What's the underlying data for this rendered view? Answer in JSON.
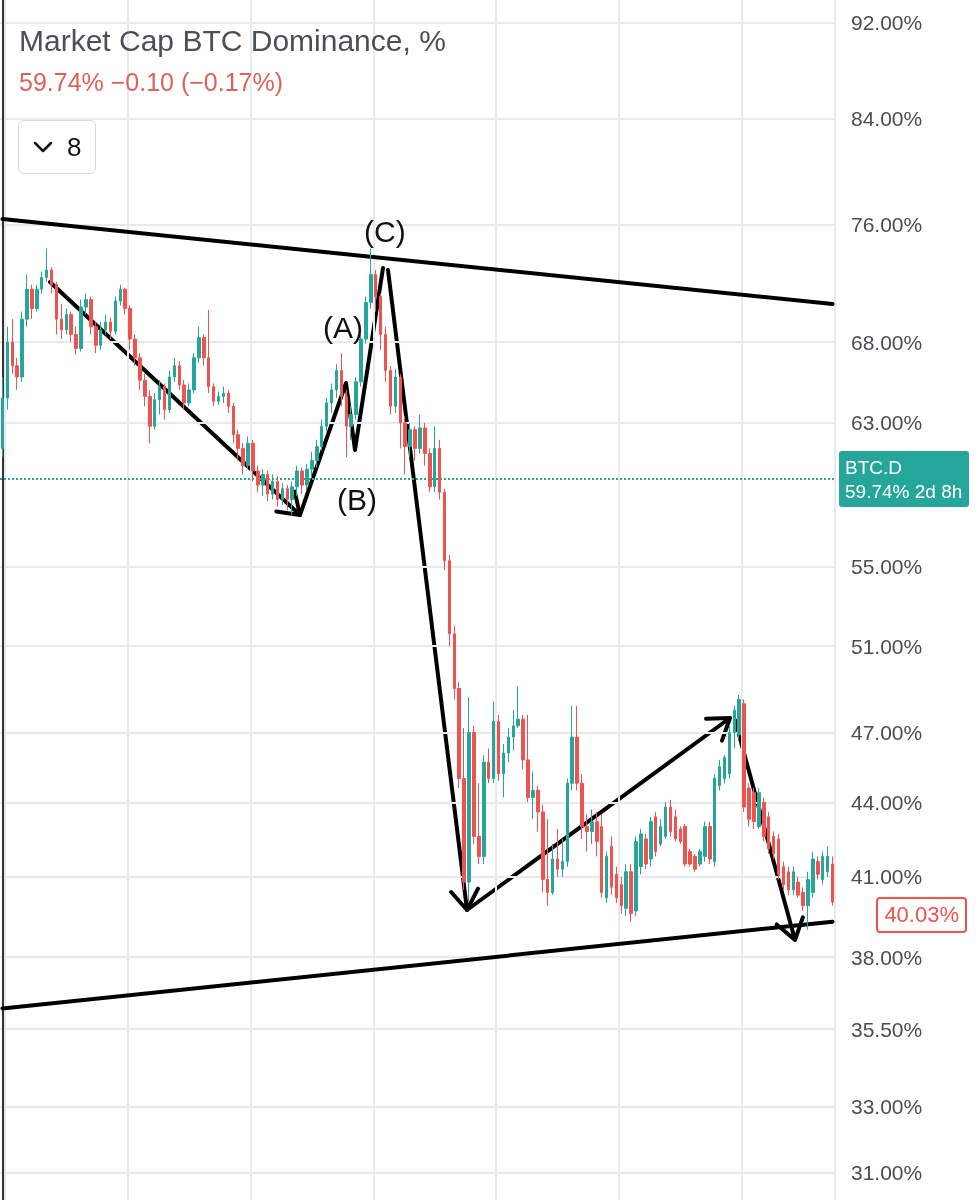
{
  "chart_data": {
    "type": "candlestick",
    "title": "Market Cap BTC Dominance, %",
    "subtitle": "59.74% −0.10 (−0.17%)",
    "categories": [
      null,
      null,
      null,
      null,
      null,
      null,
      null,
      null,
      null,
      null,
      null,
      null,
      null,
      null,
      null,
      null,
      null,
      null,
      null,
      null,
      null,
      null,
      null,
      null,
      null,
      null,
      null,
      null,
      null,
      null,
      null,
      null,
      null,
      null,
      null,
      null,
      null,
      null,
      null,
      null,
      null,
      null,
      null,
      null,
      null,
      null,
      null,
      null,
      null,
      null,
      null,
      null,
      null,
      null,
      null,
      null,
      null,
      null,
      null,
      null,
      null,
      null,
      null,
      null,
      null,
      null,
      null,
      null,
      null,
      null,
      null,
      null,
      null,
      null,
      null,
      null,
      null,
      null,
      null,
      null,
      null,
      null,
      null,
      null,
      null,
      null,
      null,
      null,
      null,
      null,
      null,
      null,
      null,
      null,
      null,
      null,
      null,
      null,
      null,
      null,
      null,
      null,
      null,
      null,
      null,
      null,
      null,
      null,
      null,
      null,
      null,
      null,
      null,
      null,
      null,
      null,
      null,
      null,
      null,
      null,
      null,
      null,
      null,
      null,
      null,
      null,
      null,
      null,
      null,
      null,
      null,
      null,
      null,
      null,
      null,
      null,
      null,
      null,
      null,
      null,
      null,
      null,
      null,
      null,
      null,
      null,
      null,
      null,
      null,
      null,
      null,
      null,
      null,
      null,
      null,
      null,
      null,
      null,
      null,
      null,
      null,
      null,
      null,
      null,
      null,
      null,
      null,
      null,
      null,
      null
    ],
    "ohlc": [
      [
        61.5,
        65.8,
        61.0,
        64.5
      ],
      [
        64.5,
        69.0,
        63.8,
        68.0
      ],
      [
        68.0,
        69.5,
        66.0,
        66.5
      ],
      [
        66.5,
        67.0,
        65.0,
        65.8
      ],
      [
        65.8,
        70.0,
        65.5,
        69.5
      ],
      [
        69.5,
        72.5,
        69.0,
        71.5
      ],
      [
        71.5,
        71.8,
        69.5,
        70.2
      ],
      [
        70.2,
        71.8,
        70.0,
        71.5
      ],
      [
        71.5,
        72.7,
        71.2,
        72.3
      ],
      [
        72.3,
        74.3,
        72.0,
        72.8
      ],
      [
        72.8,
        73.0,
        71.2,
        71.8
      ],
      [
        71.8,
        72.0,
        68.5,
        69.5
      ],
      [
        69.5,
        70.5,
        68.2,
        68.8
      ],
      [
        68.8,
        70.2,
        68.5,
        69.8
      ],
      [
        69.8,
        70.0,
        68.0,
        68.5
      ],
      [
        68.5,
        69.0,
        67.2,
        67.6
      ],
      [
        67.6,
        70.8,
        67.4,
        70.3
      ],
      [
        70.3,
        71.2,
        69.8,
        70.8
      ],
      [
        70.8,
        71.0,
        68.5,
        69.0
      ],
      [
        69.0,
        69.3,
        67.3,
        67.8
      ],
      [
        67.8,
        69.3,
        67.5,
        68.8
      ],
      [
        68.8,
        69.8,
        68.5,
        69.3
      ],
      [
        69.3,
        69.6,
        68.2,
        68.7
      ],
      [
        68.7,
        71.0,
        68.5,
        70.7
      ],
      [
        70.7,
        71.8,
        70.4,
        71.5
      ],
      [
        71.5,
        71.6,
        69.8,
        70.2
      ],
      [
        70.2,
        70.4,
        67.5,
        68.2
      ],
      [
        68.2,
        68.5,
        66.5,
        67.0
      ],
      [
        67.0,
        67.3,
        65.0,
        65.6
      ],
      [
        65.6,
        66.0,
        64.0,
        64.6
      ],
      [
        64.6,
        65.0,
        61.8,
        62.8
      ],
      [
        62.8,
        64.8,
        62.6,
        64.4
      ],
      [
        64.4,
        65.6,
        63.5,
        65.2
      ],
      [
        65.2,
        65.4,
        63.2,
        63.8
      ],
      [
        63.8,
        66.2,
        63.6,
        65.8
      ],
      [
        65.8,
        67.0,
        65.5,
        66.5
      ],
      [
        66.5,
        66.8,
        65.0,
        65.3
      ],
      [
        65.3,
        65.6,
        63.8,
        64.2
      ],
      [
        64.2,
        65.4,
        64.0,
        65.0
      ],
      [
        65.0,
        67.3,
        64.8,
        67.0
      ],
      [
        67.0,
        69.0,
        66.7,
        68.3
      ],
      [
        68.3,
        68.5,
        66.5,
        67.0
      ],
      [
        67.0,
        70.1,
        64.8,
        65.2
      ],
      [
        65.2,
        65.4,
        64.0,
        64.3
      ],
      [
        64.3,
        64.9,
        64.1,
        64.6
      ],
      [
        64.6,
        65.2,
        64.2,
        64.8
      ],
      [
        64.8,
        65.0,
        63.6,
        64.0
      ],
      [
        64.0,
        64.2,
        61.8,
        62.3
      ],
      [
        62.3,
        62.6,
        60.8,
        61.5
      ],
      [
        61.5,
        61.8,
        60.0,
        60.5
      ],
      [
        60.5,
        62.2,
        60.3,
        61.8
      ],
      [
        61.8,
        62.0,
        59.6,
        60.2
      ],
      [
        60.2,
        60.5,
        59.0,
        59.4
      ],
      [
        59.4,
        60.3,
        58.8,
        60.0
      ],
      [
        60.0,
        60.2,
        58.5,
        58.9
      ],
      [
        58.9,
        60.0,
        58.6,
        59.6
      ],
      [
        59.6,
        59.9,
        58.2,
        58.6
      ],
      [
        58.6,
        59.5,
        58.3,
        59.2
      ],
      [
        59.2,
        59.4,
        58.0,
        58.6
      ],
      [
        58.6,
        59.6,
        57.7,
        59.3
      ],
      [
        59.3,
        60.5,
        58.8,
        60.2
      ],
      [
        60.2,
        60.4,
        58.9,
        59.4
      ],
      [
        59.4,
        60.6,
        59.1,
        60.3
      ],
      [
        60.3,
        61.3,
        59.8,
        60.8
      ],
      [
        60.8,
        62.0,
        60.4,
        61.6
      ],
      [
        61.6,
        63.2,
        61.4,
        62.8
      ],
      [
        62.8,
        64.5,
        62.5,
        64.2
      ],
      [
        64.2,
        65.4,
        63.6,
        65.0
      ],
      [
        65.0,
        66.6,
        64.5,
        66.2
      ],
      [
        66.2,
        67.3,
        64.0,
        64.6
      ],
      [
        64.6,
        65.0,
        61.0,
        62.8
      ],
      [
        62.8,
        64.0,
        62.0,
        63.5
      ],
      [
        63.5,
        65.8,
        63.2,
        65.5
      ],
      [
        65.5,
        68.5,
        65.2,
        68.2
      ],
      [
        68.2,
        71.0,
        67.9,
        70.6
      ],
      [
        70.6,
        74.3,
        70.2,
        72.5
      ],
      [
        72.5,
        72.8,
        70.0,
        71.0
      ],
      [
        71.0,
        71.2,
        67.5,
        68.5
      ],
      [
        68.5,
        69.0,
        65.5,
        66.2
      ],
      [
        66.2,
        66.5,
        63.5,
        64.0
      ],
      [
        64.0,
        66.3,
        63.6,
        65.8
      ],
      [
        65.8,
        66.0,
        61.5,
        63.0
      ],
      [
        63.0,
        63.4,
        60.0,
        61.6
      ],
      [
        61.6,
        63.0,
        61.0,
        62.6
      ],
      [
        62.6,
        62.8,
        60.8,
        61.5
      ],
      [
        61.5,
        63.5,
        61.2,
        62.7
      ],
      [
        62.7,
        63.0,
        60.5,
        61.2
      ],
      [
        61.2,
        61.5,
        59.0,
        59.3
      ],
      [
        59.3,
        62.8,
        59.0,
        61.5
      ],
      [
        61.5,
        62.0,
        58.6,
        59.0
      ],
      [
        59.0,
        59.2,
        54.8,
        55.3
      ],
      [
        55.3,
        55.6,
        51.0,
        51.6
      ],
      [
        51.6,
        52.0,
        48.5,
        49.0
      ],
      [
        49.0,
        49.3,
        44.6,
        45.0
      ],
      [
        45.0,
        47.2,
        40.5,
        40.8
      ],
      [
        40.8,
        48.6,
        40.0,
        47.0
      ],
      [
        47.0,
        47.3,
        42.3,
        42.6
      ],
      [
        42.6,
        44.8,
        41.5,
        41.8
      ],
      [
        41.8,
        46.0,
        41.5,
        45.7
      ],
      [
        45.7,
        46.3,
        44.8,
        45.0
      ],
      [
        45.0,
        48.4,
        44.8,
        47.5
      ],
      [
        47.5,
        47.8,
        44.9,
        45.2
      ],
      [
        45.2,
        46.5,
        44.2,
        46.1
      ],
      [
        46.1,
        47.2,
        45.7,
        46.8
      ],
      [
        46.8,
        48.0,
        46.2,
        47.3
      ],
      [
        47.3,
        49.1,
        47.2,
        47.6
      ],
      [
        47.6,
        47.8,
        45.4,
        45.8
      ],
      [
        45.8,
        47.8,
        44.0,
        44.2
      ],
      [
        44.2,
        45.3,
        43.3,
        44.5
      ],
      [
        44.5,
        44.7,
        42.8,
        43.6
      ],
      [
        43.6,
        43.9,
        40.4,
        40.9
      ],
      [
        40.9,
        43.3,
        39.9,
        40.4
      ],
      [
        40.4,
        42.3,
        40.3,
        41.7
      ],
      [
        41.7,
        42.9,
        41.0,
        41.3
      ],
      [
        41.3,
        42.5,
        41.0,
        41.6
      ],
      [
        41.6,
        45.0,
        41.4,
        44.8
      ],
      [
        44.8,
        48.2,
        44.5,
        46.8
      ],
      [
        46.8,
        48.2,
        44.5,
        44.8
      ],
      [
        44.8,
        45.2,
        42.5,
        43.0
      ],
      [
        43.0,
        43.5,
        42.0,
        42.8
      ],
      [
        42.8,
        43.7,
        42.3,
        43.2
      ],
      [
        43.2,
        43.6,
        41.8,
        42.4
      ],
      [
        43.0,
        43.5,
        40.2,
        40.4
      ],
      [
        40.2,
        42.0,
        40.0,
        41.8
      ],
      [
        42.2,
        42.6,
        40.3,
        40.6
      ],
      [
        41.1,
        41.4,
        40.0,
        40.2
      ],
      [
        40.7,
        41.0,
        39.6,
        39.9
      ],
      [
        39.8,
        41.5,
        39.5,
        41.2
      ],
      [
        41.2,
        41.5,
        39.3,
        39.6
      ],
      [
        39.7,
        42.6,
        39.5,
        42.4
      ],
      [
        41.4,
        42.9,
        41.1,
        42.7
      ],
      [
        42.5,
        42.7,
        41.3,
        41.5
      ],
      [
        41.7,
        43.4,
        41.4,
        43.2
      ],
      [
        43.4,
        43.6,
        41.8,
        42.0
      ],
      [
        42.3,
        43.3,
        42.2,
        43.0
      ],
      [
        42.6,
        44.0,
        42.5,
        43.8
      ],
      [
        43.8,
        44.1,
        42.6,
        42.8
      ],
      [
        43.4,
        43.7,
        42.4,
        42.5
      ],
      [
        42.9,
        43.0,
        42.3,
        42.4
      ],
      [
        43.0,
        43.1,
        41.4,
        41.5
      ],
      [
        42.0,
        42.1,
        41.4,
        41.5
      ],
      [
        41.8,
        41.9,
        41.2,
        41.3
      ],
      [
        41.5,
        42.1,
        41.4,
        42.0
      ],
      [
        41.8,
        43.2,
        41.6,
        43.0
      ],
      [
        43.0,
        43.2,
        41.5,
        41.7
      ],
      [
        41.6,
        45.2,
        41.4,
        45.0
      ],
      [
        44.7,
        45.8,
        44.5,
        45.5
      ],
      [
        45.0,
        46.0,
        44.8,
        45.9
      ],
      [
        45.2,
        47.3,
        45.0,
        47.0
      ],
      [
        47.0,
        48.2,
        46.3,
        48.0
      ],
      [
        46.9,
        48.7,
        46.7,
        48.5
      ],
      [
        48.3,
        48.5,
        43.6,
        43.8
      ],
      [
        44.6,
        44.8,
        43.0,
        43.3
      ],
      [
        44.4,
        44.6,
        42.9,
        43.2
      ],
      [
        43.0,
        44.6,
        42.9,
        44.4
      ],
      [
        44.0,
        44.2,
        42.4,
        42.6
      ],
      [
        43.4,
        43.6,
        41.9,
        42.1
      ],
      [
        42.6,
        42.8,
        41.7,
        41.9
      ],
      [
        42.5,
        42.7,
        40.9,
        41.1
      ],
      [
        41.4,
        41.6,
        40.5,
        40.7
      ],
      [
        41.2,
        41.4,
        40.3,
        40.5
      ],
      [
        40.5,
        41.4,
        40.3,
        41.2
      ],
      [
        40.8,
        41.0,
        40.2,
        40.3
      ],
      [
        40.4,
        40.6,
        39.7,
        39.9
      ],
      [
        39.9,
        41.2,
        39.0,
        40.9
      ],
      [
        40.4,
        42.0,
        40.2,
        41.7
      ],
      [
        41.6,
        41.8,
        40.9,
        41.1
      ],
      [
        40.9,
        42.0,
        40.7,
        41.8
      ],
      [
        41.2,
        42.2,
        41.0,
        41.8
      ],
      [
        41.5,
        41.8,
        39.9,
        40.03
      ]
    ],
    "colors": [
      "#26a69a",
      "#26a69a",
      "#ef5350",
      "#ef5350",
      "#26a69a",
      "#26a69a",
      "#ef5350",
      "#26a69a",
      "#26a69a",
      "#26a69a",
      "#ef5350",
      "#ef5350",
      "#ef5350",
      "#26a69a",
      "#ef5350",
      "#ef5350",
      "#26a69a",
      "#26a69a",
      "#ef5350",
      "#ef5350",
      "#26a69a",
      "#26a69a",
      "#ef5350",
      "#26a69a",
      "#26a69a",
      "#ef5350",
      "#ef5350",
      "#ef5350",
      "#ef5350",
      "#ef5350",
      "#ef5350",
      "#26a69a",
      "#26a69a",
      "#ef5350",
      "#26a69a",
      "#26a69a",
      "#ef5350",
      "#ef5350",
      "#26a69a",
      "#26a69a",
      "#26a69a",
      "#ef5350",
      "#ef5350",
      "#ef5350",
      "#26a69a",
      "#26a69a",
      "#ef5350",
      "#ef5350",
      "#ef5350",
      "#ef5350",
      "#26a69a",
      "#ef5350",
      "#ef5350",
      "#26a69a",
      "#ef5350",
      "#26a69a",
      "#ef5350",
      "#26a69a",
      "#ef5350",
      "#26a69a",
      "#26a69a",
      "#ef5350",
      "#26a69a",
      "#26a69a",
      "#26a69a",
      "#26a69a",
      "#26a69a",
      "#26a69a",
      "#26a69a",
      "#ef5350",
      "#ef5350",
      "#26a69a",
      "#26a69a",
      "#26a69a",
      "#26a69a",
      "#26a69a",
      "#ef5350",
      "#ef5350",
      "#ef5350",
      "#ef5350",
      "#26a69a",
      "#ef5350",
      "#ef5350",
      "#26a69a",
      "#ef5350",
      "#26a69a",
      "#ef5350",
      "#ef5350",
      "#26a69a",
      "#ef5350",
      "#ef5350",
      "#ef5350",
      "#ef5350",
      "#ef5350",
      "#ef5350",
      "#26a69a",
      "#ef5350",
      "#ef5350",
      "#26a69a",
      "#ef5350",
      "#26a69a",
      "#ef5350",
      "#26a69a",
      "#26a69a",
      "#26a69a",
      "#26a69a",
      "#ef5350",
      "#ef5350",
      "#26a69a",
      "#ef5350",
      "#ef5350",
      "#ef5350",
      "#26a69a",
      "#ef5350",
      "#26a69a",
      "#26a69a",
      "#26a69a",
      "#ef5350",
      "#ef5350",
      "#ef5350",
      "#26a69a",
      "#ef5350",
      "#ef5350",
      "#26a69a",
      "#ef5350",
      "#ef5350",
      "#ef5350",
      "#26a69a",
      "#ef5350",
      "#26a69a",
      "#26a69a",
      "#ef5350",
      "#26a69a",
      "#ef5350",
      "#26a69a",
      "#26a69a",
      "#ef5350",
      "#ef5350",
      "#ef5350",
      "#ef5350",
      "#ef5350",
      "#ef5350",
      "#26a69a",
      "#26a69a",
      "#ef5350",
      "#26a69a",
      "#26a69a",
      "#26a69a",
      "#26a69a",
      "#26a69a",
      "#26a69a",
      "#ef5350",
      "#ef5350",
      "#ef5350",
      "#26a69a",
      "#ef5350",
      "#ef5350",
      "#ef5350",
      "#ef5350",
      "#ef5350",
      "#ef5350",
      "#26a69a",
      "#ef5350",
      "#ef5350",
      "#26a69a",
      "#26a69a",
      "#ef5350",
      "#26a69a",
      "#26a69a",
      "#ef5350"
    ],
    "series": [
      {
        "type": "line",
        "color": "#000000",
        "values": [
          76.4,
          null,
          null,
          null,
          null,
          null,
          null,
          null,
          null,
          null,
          null,
          null,
          null,
          null,
          null,
          null,
          null,
          null,
          null,
          null,
          null,
          null,
          null,
          null,
          null,
          null,
          null,
          null,
          null,
          null,
          null,
          null,
          null,
          null,
          null,
          null,
          null,
          null,
          null,
          null,
          null,
          null,
          null,
          null,
          null,
          null,
          null,
          null,
          null,
          null,
          null,
          null,
          null,
          null,
          null,
          null,
          null,
          null,
          null,
          null,
          null,
          null,
          null,
          null,
          null,
          null,
          null,
          null,
          null,
          null,
          null,
          null,
          null,
          null,
          null,
          null,
          null,
          null,
          null,
          null,
          null,
          null,
          null,
          null,
          null,
          null,
          null,
          null,
          null,
          null,
          null,
          null,
          null,
          null,
          null,
          null,
          null,
          null,
          null,
          null,
          null,
          null,
          null,
          null,
          null,
          null,
          null,
          null,
          null,
          null,
          null,
          null,
          null,
          null,
          null,
          null,
          null,
          null,
          null,
          null,
          null,
          null,
          null,
          null,
          null,
          null,
          null,
          null,
          null,
          null,
          null,
          null,
          null,
          null,
          null,
          null,
          null,
          null,
          null,
          null,
          null,
          null,
          null,
          null,
          null,
          null,
          null,
          null,
          null,
          null,
          null,
          null,
          null,
          null,
          null,
          null,
          null,
          null,
          null,
          null,
          null,
          null,
          null,
          null,
          null,
          null,
          null,
          null,
          null,
          70.5
        ]
      },
      {
        "type": "line",
        "color": "#000000",
        "values": [
          36.2,
          null,
          null,
          null,
          null,
          null,
          null,
          null,
          null,
          null,
          null,
          null,
          null,
          null,
          null,
          null,
          null,
          null,
          null,
          null,
          null,
          null,
          null,
          null,
          null,
          null,
          null,
          null,
          null,
          null,
          null,
          null,
          null,
          null,
          null,
          null,
          null,
          null,
          null,
          null,
          null,
          null,
          null,
          null,
          null,
          null,
          null,
          null,
          null,
          null,
          null,
          null,
          null,
          null,
          null,
          null,
          null,
          null,
          null,
          null,
          null,
          null,
          null,
          null,
          null,
          null,
          null,
          null,
          null,
          null,
          null,
          null,
          null,
          null,
          null,
          null,
          null,
          null,
          null,
          null,
          null,
          null,
          null,
          null,
          null,
          null,
          null,
          null,
          null,
          null,
          null,
          null,
          null,
          null,
          null,
          null,
          null,
          null,
          null,
          null,
          null,
          null,
          null,
          null,
          null,
          null,
          null,
          null,
          null,
          null,
          null,
          null,
          null,
          null,
          null,
          null,
          null,
          null,
          null,
          null,
          null,
          null,
          null,
          null,
          null,
          null,
          null,
          null,
          null,
          null,
          null,
          null,
          null,
          null,
          null,
          null,
          null,
          null,
          null,
          null,
          null,
          null,
          null,
          null,
          null,
          null,
          null,
          null,
          null,
          null,
          null,
          null,
          null,
          null,
          null,
          null,
          null,
          null,
          null,
          null,
          null,
          null,
          null,
          null,
          null,
          null,
          null,
          null,
          null,
          39.3
        ]
      }
    ],
    "ylim": [
      30.2,
      94
    ],
    "yticks": [
      {
        "value": 92,
        "label": "92.00%"
      },
      {
        "value": 84,
        "label": "84.00%"
      },
      {
        "value": 76,
        "label": "76.00%"
      },
      {
        "value": 68,
        "label": "68.00%"
      },
      {
        "value": 63,
        "label": "63.00%"
      },
      {
        "value": 55,
        "label": "55.00%"
      },
      {
        "value": 51,
        "label": "51.00%"
      },
      {
        "value": 47,
        "label": "47.00%"
      },
      {
        "value": 44,
        "label": "44.00%"
      },
      {
        "value": 41,
        "label": "41.00%"
      },
      {
        "value": 38,
        "label": "38.00%"
      },
      {
        "value": 35.5,
        "label": "35.50%"
      },
      {
        "value": 33,
        "label": "33.00%"
      },
      {
        "value": 31,
        "label": "31.00%"
      }
    ],
    "log": true,
    "grid": true,
    "tick_labels": "y",
    "ref_lines": [
      {
        "axis": "y",
        "value": 59.74,
        "label": "BTC.D 59.74% 2d 8h",
        "color": "#26a69a",
        "line_style": "dotted"
      }
    ],
    "annotations": [
      "8",
      "(A)",
      "(B)",
      "(C)",
      "40.03%"
    ]
  }
}
